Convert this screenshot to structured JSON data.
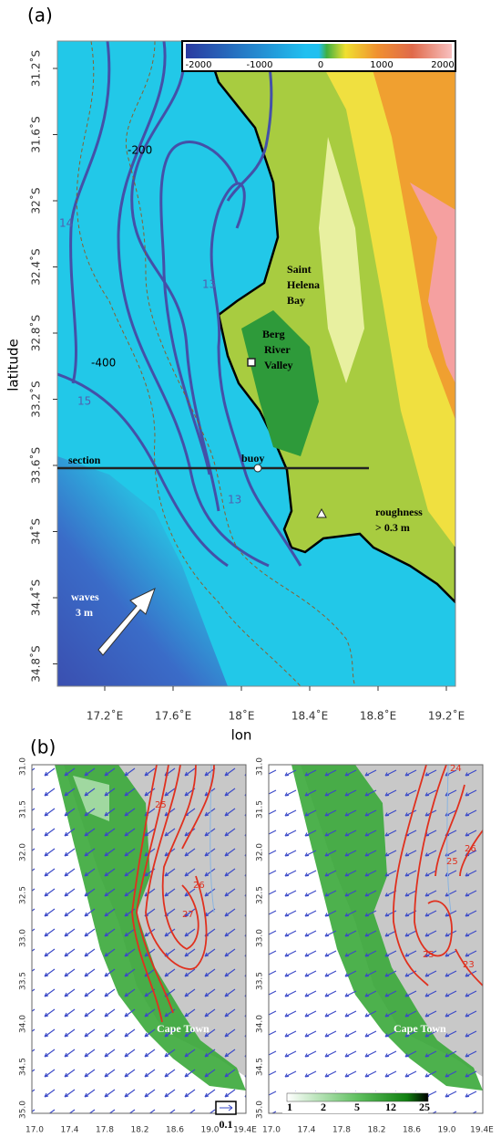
{
  "panel_a": {
    "label": "(a)",
    "x_label": "lon",
    "y_label": "latitude",
    "y_ticks": [
      "31.2˚S",
      "31.6˚S",
      "32˚S",
      "32.4˚S",
      "32.8˚S",
      "33.2˚S",
      "33.6˚S",
      "34˚S",
      "34.4˚S",
      "34.8˚S"
    ],
    "x_ticks": [
      "17.2˚E",
      "17.6˚E",
      "18˚E",
      "18.4˚E",
      "18.8˚E",
      "19.2˚E"
    ],
    "colorbar_ticks": [
      "-2000",
      "-1000",
      "0",
      "1000",
      "2000"
    ],
    "contour_labels": [
      "-200",
      "-400",
      "14",
      "13",
      "15",
      "13"
    ],
    "annotations": {
      "saint_helena": [
        "Saint",
        "Helena",
        "Bay"
      ],
      "berg": [
        "Berg",
        "River",
        "Valley"
      ],
      "section": "section",
      "buoy": "buoy",
      "roughness": [
        "roughness",
        "> 0.3 m"
      ],
      "waves": [
        "waves",
        "3 m"
      ]
    }
  },
  "panel_b": {
    "label": "(b)",
    "y_ticks": [
      "31.0",
      "31.5",
      "32.0",
      "32.5",
      "33.0",
      "33.5",
      "34.0",
      "34.5",
      "35.0"
    ],
    "x_ticks": [
      "17.0",
      "17.4",
      "17.8",
      "18.2",
      "18.6",
      "19.0",
      "19.4E"
    ],
    "left": {
      "contour_labels": [
        "25",
        "26",
        "27"
      ],
      "place": "Cape Town",
      "vector_scale": "0.1"
    },
    "right": {
      "contour_labels": [
        "24",
        "26",
        "25",
        "25",
        "23"
      ],
      "place": "Cape Town",
      "colorbar_ticks": [
        "1",
        "2",
        "5",
        "12",
        "25"
      ]
    }
  }
}
